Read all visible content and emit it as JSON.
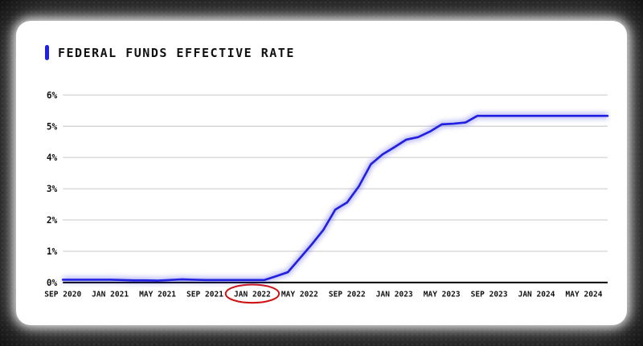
{
  "page": {
    "background_color": "#0a0a0a",
    "card_color": "#ffffff"
  },
  "legend": {
    "marker_color": "#2120e8"
  },
  "chart_data": {
    "type": "line",
    "title": "FEDERAL FUNDS EFFECTIVE RATE",
    "line_color": "#2120e0",
    "grid": true,
    "ylim": [
      0,
      6
    ],
    "y_ticks": [
      "0%",
      "1%",
      "2%",
      "3%",
      "4%",
      "5%",
      "6%"
    ],
    "x_tick_step": 4,
    "x_tick_labels": [
      "SEP 2020",
      "JAN 2021",
      "MAY 2021",
      "SEP 2021",
      "JAN 2022",
      "MAY 2022",
      "SEP 2022",
      "JAN 2023",
      "MAY 2023",
      "SEP 2023",
      "JAN 2024",
      "MAY 2024"
    ],
    "x": [
      "SEP 2020",
      "OCT 2020",
      "NOV 2020",
      "DEC 2020",
      "JAN 2021",
      "FEB 2021",
      "MAR 2021",
      "APR 2021",
      "MAY 2021",
      "JUN 2021",
      "JUL 2021",
      "AUG 2021",
      "SEP 2021",
      "OCT 2021",
      "NOV 2021",
      "DEC 2021",
      "JAN 2022",
      "FEB 2022",
      "MAR 2022",
      "APR 2022",
      "MAY 2022",
      "JUN 2022",
      "JUL 2022",
      "AUG 2022",
      "SEP 2022",
      "OCT 2022",
      "NOV 2022",
      "DEC 2022",
      "JAN 2023",
      "FEB 2023",
      "MAR 2023",
      "APR 2023",
      "MAY 2023",
      "JUN 2023",
      "JUL 2023",
      "AUG 2023",
      "SEP 2023",
      "OCT 2023",
      "NOV 2023",
      "DEC 2023",
      "JAN 2024",
      "FEB 2024",
      "MAR 2024",
      "APR 2024",
      "MAY 2024",
      "JUN 2024",
      "JUL 2024"
    ],
    "values": [
      0.09,
      0.09,
      0.09,
      0.09,
      0.09,
      0.08,
      0.07,
      0.07,
      0.06,
      0.08,
      0.1,
      0.09,
      0.08,
      0.08,
      0.08,
      0.08,
      0.08,
      0.08,
      0.2,
      0.33,
      0.77,
      1.21,
      1.68,
      2.33,
      2.56,
      3.08,
      3.78,
      4.1,
      4.33,
      4.57,
      4.65,
      4.83,
      5.06,
      5.08,
      5.12,
      5.33,
      5.33,
      5.33,
      5.33,
      5.33,
      5.33,
      5.33,
      5.33,
      5.33,
      5.33,
      5.33,
      5.33
    ],
    "annotation": {
      "shape": "ellipse",
      "label": "JAN 2022",
      "tick_index": 4,
      "color": "#cf1212"
    }
  }
}
